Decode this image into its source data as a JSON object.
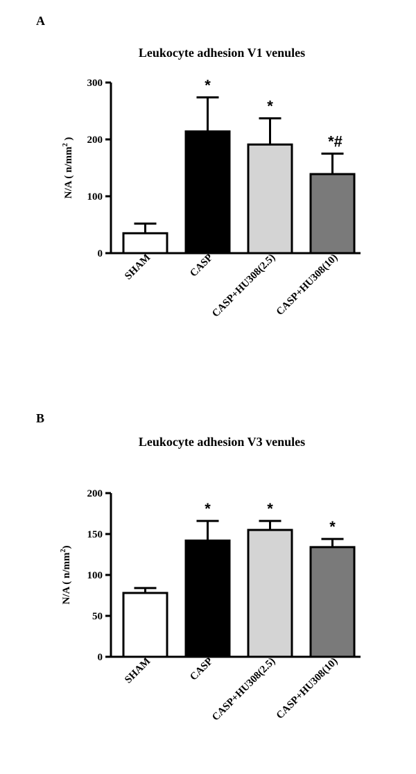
{
  "chart_data": [
    {
      "panel": "A",
      "type": "bar",
      "title": "Leukocyte adhesion V1 venules",
      "ylabel": "N/A ( n/mm",
      "ylabel_sup": "2",
      "ylabel_close": " )",
      "categories": [
        "SHAM",
        "CASP",
        "CASP+HU308(2.5)",
        "CASP+HU308(10)"
      ],
      "values": [
        35,
        214,
        191,
        139
      ],
      "errors": [
        17,
        60,
        46,
        36
      ],
      "annotations": [
        "",
        "*",
        "*",
        "*#"
      ],
      "fills": [
        "#ffffff",
        "#000000",
        "#d4d4d4",
        "#7a7a7a"
      ],
      "ylim": [
        0,
        300
      ],
      "yticks": [
        0,
        100,
        200,
        300
      ]
    },
    {
      "panel": "B",
      "type": "bar",
      "title": "Leukocyte adhesion V3 venules",
      "ylabel": "N/A ( n/mm",
      "ylabel_sup": "2",
      "ylabel_close": ")",
      "categories": [
        "SHAM",
        "CASP",
        "CASP+HU308(2.5)",
        "CASP+HU308(10)"
      ],
      "values": [
        78,
        142,
        155,
        134
      ],
      "errors": [
        6,
        24,
        11,
        10
      ],
      "annotations": [
        "",
        "*",
        "*",
        "*"
      ],
      "fills": [
        "#ffffff",
        "#000000",
        "#d4d4d4",
        "#7a7a7a"
      ],
      "ylim": [
        0,
        200
      ],
      "yticks": [
        0,
        50,
        100,
        150,
        200
      ]
    }
  ]
}
